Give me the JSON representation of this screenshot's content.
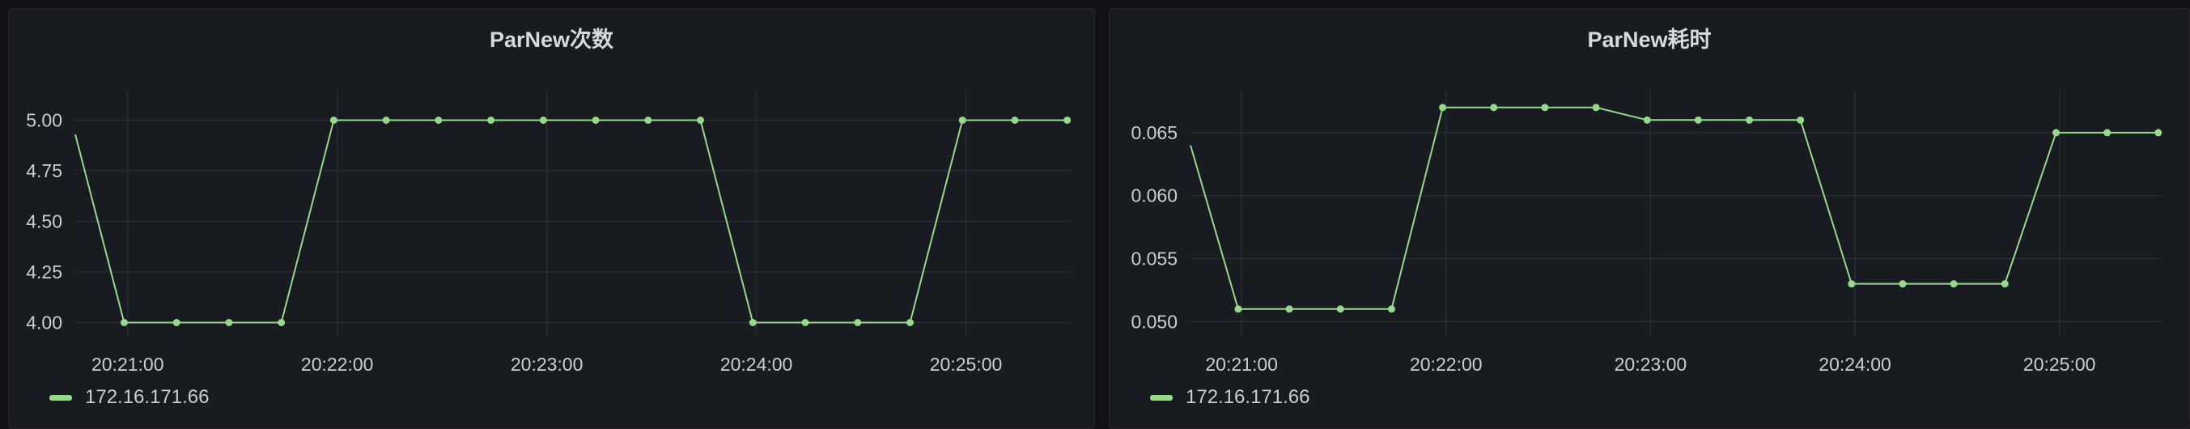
{
  "colors": {
    "series": "#96d98d",
    "background": "#111217",
    "panel": "#181b1f"
  },
  "panels": [
    {
      "title": "ParNew次数",
      "legend_label": "172.16.171.66",
      "x_tick_labels": [
        "20:21:00",
        "20:22:00",
        "20:23:00",
        "20:24:00",
        "20:25:00"
      ],
      "y_tick_labels": [
        "4.00",
        "4.25",
        "4.50",
        "4.75",
        "5.00"
      ]
    },
    {
      "title": "ParNew耗时",
      "legend_label": "172.16.171.66",
      "x_tick_labels": [
        "20:21:00",
        "20:22:00",
        "20:23:00",
        "20:24:00",
        "20:25:00"
      ],
      "y_tick_labels": [
        "0.050",
        "0.055",
        "0.060",
        "0.065"
      ]
    }
  ],
  "chart_data": [
    {
      "type": "line",
      "title": "ParNew次数",
      "x_ticks": [
        "20:21:00",
        "20:22:00",
        "20:23:00",
        "20:24:00",
        "20:25:00"
      ],
      "y_ticks": [
        4.0,
        4.25,
        4.5,
        4.75,
        5.0
      ],
      "ylim": [
        3.93,
        5.15
      ],
      "xlim": [
        "20:20:45",
        "20:25:30"
      ],
      "grid": true,
      "legend_position": "bottom-left",
      "series": [
        {
          "name": "172.16.171.66",
          "x": [
            "20:20:45",
            "20:20:59",
            "20:21:14",
            "20:21:29",
            "20:21:44",
            "20:21:59",
            "20:22:14",
            "20:22:29",
            "20:22:44",
            "20:22:59",
            "20:23:14",
            "20:23:29",
            "20:23:44",
            "20:23:59",
            "20:24:14",
            "20:24:29",
            "20:24:44",
            "20:24:59",
            "20:25:14",
            "20:25:29"
          ],
          "values": [
            4.93,
            4,
            4,
            4,
            4,
            5,
            5,
            5,
            5,
            5,
            5,
            5,
            5,
            4,
            4,
            4,
            4,
            5,
            5,
            5
          ],
          "markers": [
            false,
            true,
            true,
            true,
            true,
            true,
            true,
            true,
            true,
            true,
            true,
            true,
            true,
            true,
            true,
            true,
            true,
            true,
            true,
            true
          ]
        }
      ]
    },
    {
      "type": "line",
      "title": "ParNew耗时",
      "x_ticks": [
        "20:21:00",
        "20:22:00",
        "20:23:00",
        "20:24:00",
        "20:25:00"
      ],
      "y_ticks": [
        0.05,
        0.055,
        0.06,
        0.065
      ],
      "ylim": [
        0.0488,
        0.0684
      ],
      "xlim": [
        "20:20:45",
        "20:25:30"
      ],
      "grid": true,
      "legend_position": "bottom-left",
      "series": [
        {
          "name": "172.16.171.66",
          "x": [
            "20:20:45",
            "20:20:59",
            "20:21:14",
            "20:21:29",
            "20:21:44",
            "20:21:59",
            "20:22:14",
            "20:22:29",
            "20:22:44",
            "20:22:59",
            "20:23:14",
            "20:23:29",
            "20:23:44",
            "20:23:59",
            "20:24:14",
            "20:24:29",
            "20:24:44",
            "20:24:59",
            "20:25:14",
            "20:25:29"
          ],
          "values": [
            0.064,
            0.051,
            0.051,
            0.051,
            0.051,
            0.067,
            0.067,
            0.067,
            0.067,
            0.066,
            0.066,
            0.066,
            0.066,
            0.053,
            0.053,
            0.053,
            0.053,
            0.065,
            0.065,
            0.065
          ],
          "markers": [
            false,
            true,
            true,
            true,
            true,
            true,
            true,
            true,
            true,
            true,
            true,
            true,
            true,
            true,
            true,
            true,
            true,
            true,
            true,
            true
          ]
        }
      ]
    }
  ]
}
